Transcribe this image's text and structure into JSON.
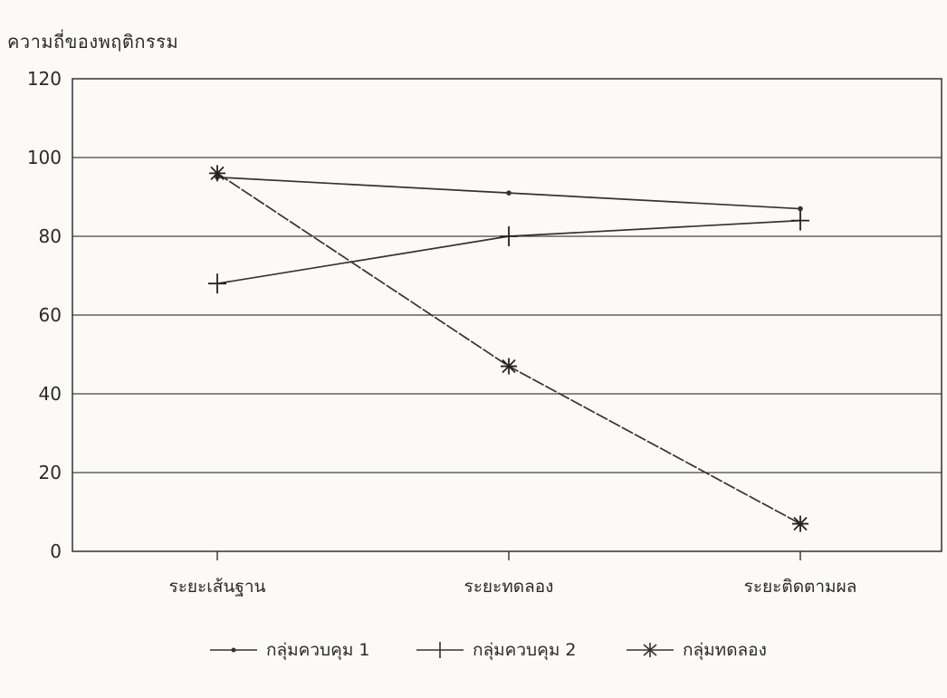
{
  "chart_data": {
    "type": "line",
    "ylabel": "ความถี่ของพฤติกรรม",
    "xlabel": "",
    "ylim": [
      0,
      120
    ],
    "yticks": [
      0,
      20,
      40,
      60,
      80,
      100,
      120
    ],
    "categories": [
      "ระยะเส้นฐาน",
      "ระยะทดลอง",
      "ระยะติดตามผล"
    ],
    "grid": true,
    "legend": "bottom",
    "series": [
      {
        "name": "กลุ่มควบคุม 1",
        "marker": "dot",
        "values": [
          95,
          91,
          87
        ]
      },
      {
        "name": "กลุ่มควบคุม 2",
        "marker": "plus",
        "values": [
          68,
          80,
          84
        ]
      },
      {
        "name": "กลุ่มทดลอง",
        "marker": "asterisk",
        "values": [
          96,
          47,
          7
        ]
      }
    ]
  }
}
